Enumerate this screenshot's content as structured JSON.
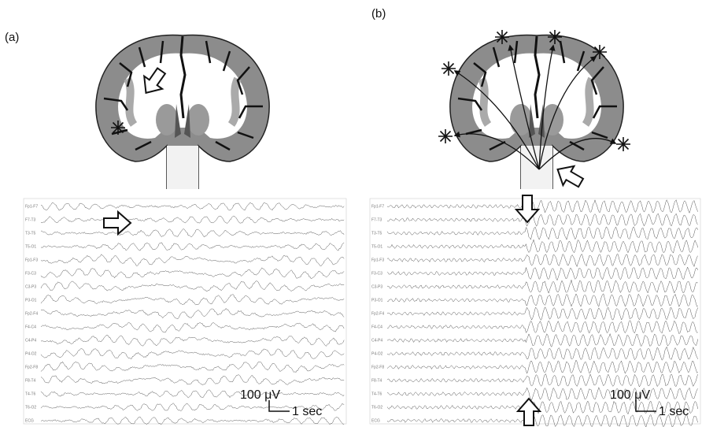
{
  "panels": [
    {
      "label": "(a)",
      "scale_amplitude": "100 μV",
      "scale_time": "1 sec",
      "channels": [
        "Fp1-F7",
        "F7-T3",
        "T3-T5",
        "T5-O1",
        "Fp1-F3",
        "F3-C3",
        "C3-P3",
        "P3-O1",
        "Fp2-F4",
        "F4-C4",
        "C4-P4",
        "P4-O2",
        "Fp2-F8",
        "F8-T4",
        "T4-T6",
        "T6-O2",
        "ECG"
      ]
    },
    {
      "label": "(b)",
      "scale_amplitude": "100 μV",
      "scale_time": "1 sec",
      "channels": [
        "Fp1-F7",
        "F7-T3",
        "T3-T5",
        "T5-O1",
        "Fp1-F3",
        "F3-C3",
        "C3-P3",
        "P3-O1",
        "Fp2-F4",
        "F4-C4",
        "C4-P4",
        "P4-O2",
        "Fp2-F8",
        "F8-T4",
        "T4-T6",
        "T6-O2",
        "ECG"
      ]
    }
  ]
}
